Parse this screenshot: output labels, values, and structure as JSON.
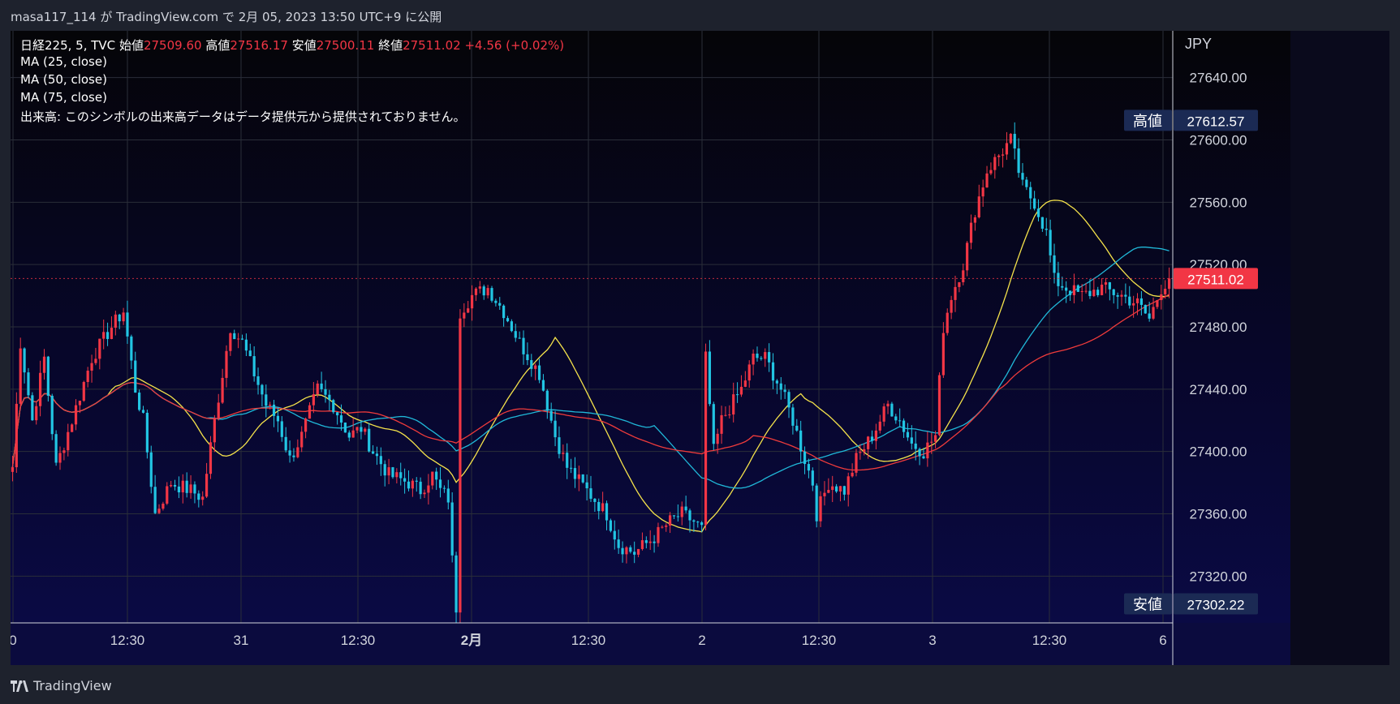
{
  "publication": "masa117_114 が TradingView.com で 2月 05, 2023 13:50 UTC+9 に公開",
  "legend": {
    "symbol": "日経225, 5, TVC",
    "open_label": "始値",
    "open_value": "27509.60",
    "high_label": "高値",
    "high_value": "27516.17",
    "low_label": "安値",
    "low_value": "27500.11",
    "close_label": "終値",
    "close_value": "27511.02",
    "change": "+4.56 (+0.02%)",
    "ma1": "MA (25, close)",
    "ma2": "MA (50, close)",
    "ma3": "MA (75, close)",
    "volume_note": "出来高: このシンボルの出来高データはデータ提供元から提供されておりません。"
  },
  "footer": {
    "brand": "TradingView",
    "logo_icon": "tradingview-logo-icon"
  },
  "chart_data": {
    "type": "candlestick",
    "currency": "JPY",
    "y_ticks": [
      "27640.00",
      "27600.00",
      "27560.00",
      "27520.00",
      "27480.00",
      "27440.00",
      "27400.00",
      "27360.00",
      "27320.00"
    ],
    "ylim": [
      27290,
      27670
    ],
    "x_labels": [
      "0",
      "12:30",
      "31",
      "12:30",
      "2月",
      "12:30",
      "2",
      "12:30",
      "3",
      "12:30",
      "6"
    ],
    "high_marker": {
      "label": "高値",
      "value": 27612.57,
      "text": "27612.57"
    },
    "low_marker": {
      "label": "安値",
      "value": 27302.22,
      "text": "27302.22"
    },
    "last_price": {
      "value": 27511.02,
      "text": "27511.02"
    },
    "colors": {
      "up": "#f23645",
      "down": "#22c5e3",
      "ma25": "#f5e34b",
      "ma50": "#20b8d8",
      "ma75": "#ef3b3b",
      "price_tag": "#f23645",
      "marker_bg": "#1b2a54"
    },
    "ohlc_knots": [
      [
        0,
        27390
      ],
      [
        2,
        27470
      ],
      [
        5,
        27420
      ],
      [
        8,
        27460
      ],
      [
        11,
        27390
      ],
      [
        15,
        27420
      ],
      [
        20,
        27460
      ],
      [
        25,
        27480
      ],
      [
        28,
        27490
      ],
      [
        31,
        27440
      ],
      [
        33,
        27420
      ],
      [
        36,
        27360
      ],
      [
        40,
        27380
      ],
      [
        45,
        27375
      ],
      [
        48,
        27370
      ],
      [
        51,
        27420
      ],
      [
        55,
        27480
      ],
      [
        58,
        27470
      ],
      [
        61,
        27450
      ],
      [
        64,
        27430
      ],
      [
        67,
        27420
      ],
      [
        70,
        27395
      ],
      [
        73,
        27410
      ],
      [
        77,
        27440
      ],
      [
        81,
        27430
      ],
      [
        85,
        27410
      ],
      [
        88,
        27415
      ],
      [
        91,
        27400
      ],
      [
        95,
        27385
      ],
      [
        100,
        27380
      ],
      [
        103,
        27375
      ],
      [
        106,
        27385
      ],
      [
        108,
        27375
      ],
      [
        110,
        27370
      ],
      [
        111,
        27330
      ],
      [
        112,
        27300
      ],
      [
        113,
        27490
      ],
      [
        116,
        27500
      ],
      [
        120,
        27505
      ],
      [
        124,
        27490
      ],
      [
        128,
        27470
      ],
      [
        133,
        27450
      ],
      [
        137,
        27410
      ],
      [
        140,
        27390
      ],
      [
        145,
        27375
      ],
      [
        150,
        27360
      ],
      [
        153,
        27340
      ],
      [
        157,
        27335
      ],
      [
        162,
        27345
      ],
      [
        166,
        27355
      ],
      [
        169,
        27360
      ],
      [
        172,
        27355
      ],
      [
        174,
        27350
      ],
      [
        175,
        27460
      ],
      [
        177,
        27400
      ],
      [
        179,
        27420
      ],
      [
        184,
        27440
      ],
      [
        187,
        27460
      ],
      [
        190,
        27460
      ],
      [
        194,
        27440
      ],
      [
        197,
        27420
      ],
      [
        200,
        27395
      ],
      [
        202,
        27380
      ],
      [
        203,
        27360
      ],
      [
        206,
        27380
      ],
      [
        210,
        27375
      ],
      [
        213,
        27395
      ],
      [
        217,
        27410
      ],
      [
        221,
        27430
      ],
      [
        224,
        27420
      ],
      [
        227,
        27405
      ],
      [
        230,
        27400
      ],
      [
        233,
        27410
      ],
      [
        235,
        27480
      ],
      [
        237,
        27500
      ],
      [
        240,
        27520
      ],
      [
        243,
        27555
      ],
      [
        246,
        27580
      ],
      [
        249,
        27590
      ],
      [
        252,
        27600
      ],
      [
        255,
        27570
      ],
      [
        258,
        27560
      ],
      [
        261,
        27540
      ],
      [
        263,
        27510
      ],
      [
        266,
        27505
      ],
      [
        270,
        27500
      ],
      [
        275,
        27505
      ],
      [
        280,
        27500
      ],
      [
        284,
        27495
      ],
      [
        287,
        27485
      ],
      [
        290,
        27505
      ],
      [
        292,
        27511
      ]
    ]
  }
}
